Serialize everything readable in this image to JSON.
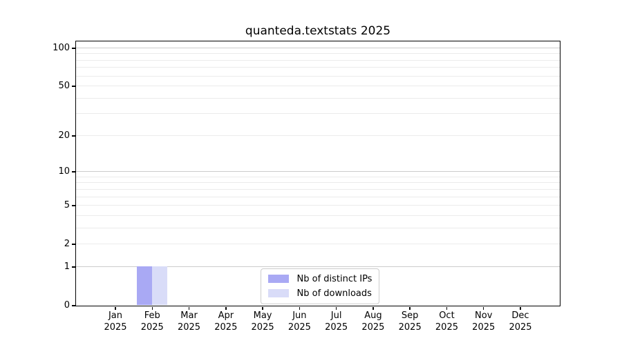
{
  "chart_data": {
    "type": "bar",
    "title": "quanteda.textstats 2025",
    "y_scale": "log1p",
    "grid": "horizontal",
    "legend_position": "bottom-center-inside",
    "categories": [
      {
        "month": "Jan",
        "year": "2025"
      },
      {
        "month": "Feb",
        "year": "2025"
      },
      {
        "month": "Mar",
        "year": "2025"
      },
      {
        "month": "Apr",
        "year": "2025"
      },
      {
        "month": "May",
        "year": "2025"
      },
      {
        "month": "Jun",
        "year": "2025"
      },
      {
        "month": "Jul",
        "year": "2025"
      },
      {
        "month": "Aug",
        "year": "2025"
      },
      {
        "month": "Sep",
        "year": "2025"
      },
      {
        "month": "Oct",
        "year": "2025"
      },
      {
        "month": "Nov",
        "year": "2025"
      },
      {
        "month": "Dec",
        "year": "2025"
      }
    ],
    "series": [
      {
        "name": "Nb of distinct IPs",
        "color": "#a9a9f4",
        "values": [
          0,
          1,
          0,
          0,
          0,
          0,
          0,
          0,
          0,
          0,
          0,
          0
        ]
      },
      {
        "name": "Nb of downloads",
        "color": "#d9dcf8",
        "values": [
          0,
          1,
          0,
          0,
          0,
          0,
          0,
          0,
          0,
          0,
          0,
          0
        ]
      }
    ],
    "y_axis": {
      "ticks": [
        0,
        1,
        2,
        5,
        10,
        20,
        50,
        100
      ],
      "major_gridlines": [
        1,
        10,
        100
      ],
      "mid_gridlines": [
        2,
        5,
        20,
        50
      ],
      "minor_gridlines": [
        3,
        4,
        6,
        7,
        8,
        9,
        30,
        40,
        60,
        70,
        80,
        90
      ],
      "range": [
        0,
        113
      ]
    },
    "style": {
      "grid_major_color": "#cccccc",
      "grid_minor_color": "#ebebeb",
      "axis_color": "#000000",
      "legend_border_color": "#cccccc",
      "text_color": "#000000",
      "background": "#ffffff"
    }
  }
}
